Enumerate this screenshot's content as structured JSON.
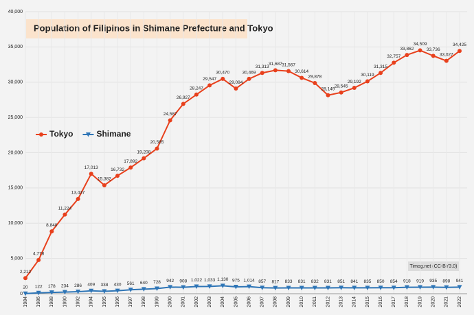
{
  "chart_data": {
    "type": "line",
    "title": "Population of Filipinos in Shimane Prefecture and Tokyo",
    "annotation": "Timog.net (CC-BY3.0)",
    "categories": [
      "1984",
      "1986",
      "1988",
      "1990",
      "1992",
      "1994",
      "1995",
      "1996",
      "1997",
      "1998",
      "1999",
      "2000",
      "2001",
      "2002",
      "2003",
      "2004",
      "2005",
      "2006",
      "2007",
      "2008",
      "2009",
      "2010",
      "2011",
      "2012",
      "2013",
      "2014",
      "2015",
      "2016",
      "2017",
      "2018",
      "2019",
      "2020",
      "2021",
      "2022"
    ],
    "series": [
      {
        "name": "Tokyo",
        "color": "#e8401c",
        "marker": "circle",
        "values": [
          2212,
          4778,
          8840,
          11224,
          13437,
          17013,
          15382,
          16732,
          17892,
          19208,
          20585,
          24587,
          26927,
          28247,
          29547,
          30470,
          29094,
          30469,
          31313,
          31687,
          31567,
          30614,
          29878,
          28149,
          28545,
          29192,
          30119,
          31315,
          32757,
          33862,
          34509,
          33736,
          33027,
          34425
        ],
        "value_labels": [
          "2,212",
          "4,778",
          "8,840",
          "11,224",
          "13,437",
          "17,013",
          "15,382",
          "16,732",
          "17,892",
          "19,208",
          "20,585",
          "24,587",
          "26,927",
          "28,247",
          "29,547",
          "30,470",
          "29,094",
          "30,469",
          "31,313",
          "31,687",
          "31,567",
          "30,614",
          "29,878",
          "28,149",
          "28,545",
          "29,192",
          "30,119",
          "31,315",
          "32,757",
          "33,862",
          "34,509",
          "33,736",
          "33,027",
          "34,425"
        ]
      },
      {
        "name": "Shimane",
        "color": "#2e75b6",
        "marker": "triangle-down",
        "values": [
          20,
          122,
          178,
          234,
          286,
          409,
          338,
          430,
          561,
          640,
          728,
          942,
          908,
          1022,
          1033,
          1130,
          975,
          1014,
          857,
          817,
          833,
          831,
          832,
          831,
          851,
          841,
          835,
          850,
          854,
          918,
          919,
          935,
          898,
          941
        ],
        "value_labels": [
          "20",
          "122",
          "178",
          "234",
          "286",
          "409",
          "338",
          "430",
          "561",
          "640",
          "728",
          "942",
          "908",
          "1,022",
          "1,033",
          "1,130",
          "975",
          "1,014",
          "857",
          "817",
          "833",
          "831",
          "832",
          "831",
          "851",
          "841",
          "835",
          "850",
          "854",
          "918",
          "919",
          "935",
          "898",
          "941"
        ]
      }
    ],
    "ylim": [
      0,
      40000
    ],
    "yticks": [
      0,
      {
        "value": 5000,
        "label": "5,000"
      },
      {
        "value": 10000,
        "label": "10,000"
      },
      {
        "value": 15000,
        "label": "15,000"
      },
      {
        "value": 20000,
        "label": "20,000"
      },
      {
        "value": 25000,
        "label": "25,000"
      },
      {
        "value": 30000,
        "label": "30,000"
      },
      {
        "value": 35000,
        "label": "35,000"
      },
      {
        "value": 40000,
        "label": "40,000"
      }
    ],
    "grid": true,
    "legend": "left"
  }
}
